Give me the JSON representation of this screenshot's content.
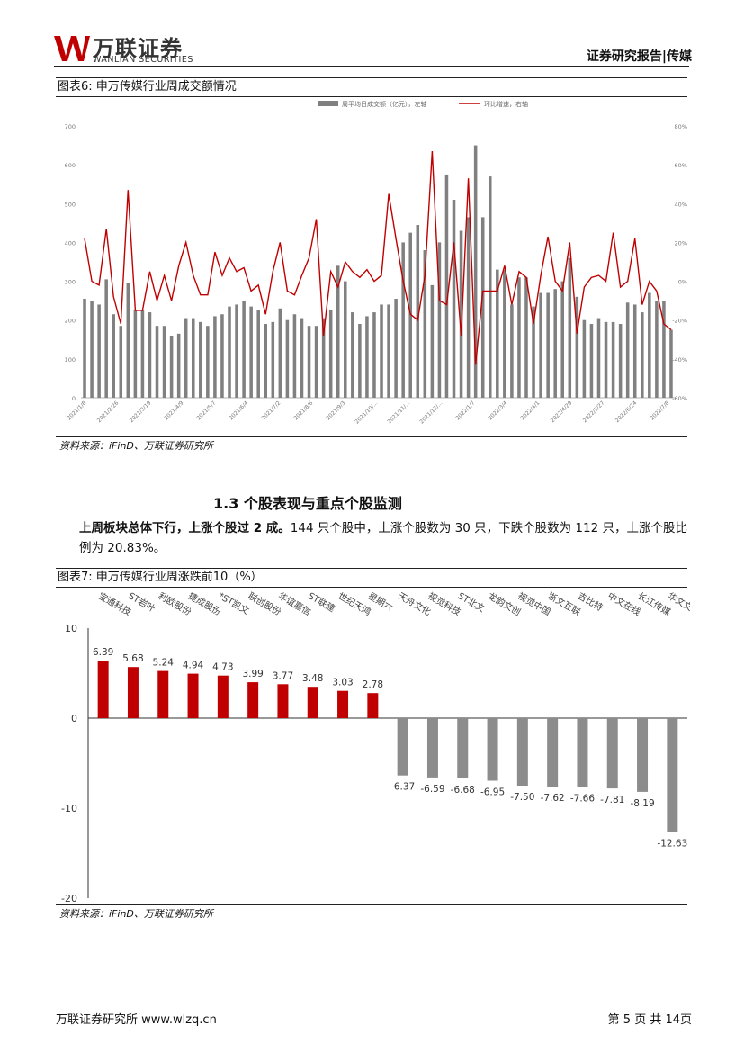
{
  "header": {
    "brand_cn": "万联证券",
    "brand_en": "WANLIAN SECURITIES",
    "report_type": "证券研究报告|传媒"
  },
  "figure6": {
    "caption": "图表6:  申万传媒行业周成交额情况",
    "source": "资料来源：iFinD、万联证券研究所",
    "chart_data": {
      "type": "bar+line",
      "legend": [
        "周平均日成交额（亿元），左轴",
        "环比增速，右轴"
      ],
      "left_axis": {
        "range": [
          0,
          700
        ],
        "ticks": [
          "0",
          "100",
          "200",
          "300",
          "400",
          "500",
          "600",
          "700"
        ]
      },
      "right_axis": {
        "range": [
          -60,
          80
        ],
        "ticks": [
          "-60%",
          "-40%",
          "-20%",
          "0%",
          "20%",
          "40%",
          "60%",
          "80%"
        ]
      },
      "x_tick_labels": [
        "2021/1/8",
        "2021/2/26",
        "2021/3/19",
        "2021/4/9",
        "2021/5/7",
        "2021/6/4",
        "2021/7/2",
        "2021/8/6",
        "2021/9/3",
        "2021/10/...",
        "2021/11/...",
        "2021/12/...",
        "2022/1/7",
        "2022/3/4",
        "2022/4/1",
        "2022/4/29",
        "2022/5/27",
        "2022/6/24",
        "2022/7/8"
      ],
      "bar_values": [
        255,
        250,
        240,
        305,
        215,
        185,
        295,
        225,
        225,
        220,
        185,
        185,
        160,
        165,
        205,
        205,
        195,
        185,
        210,
        215,
        235,
        240,
        250,
        235,
        225,
        190,
        195,
        230,
        200,
        215,
        205,
        185,
        185,
        205,
        225,
        340,
        300,
        220,
        190,
        210,
        220,
        240,
        240,
        255,
        400,
        425,
        445,
        380,
        290,
        400,
        575,
        510,
        430,
        465,
        650,
        465,
        570,
        330,
        330,
        240,
        310,
        310,
        235,
        270,
        270,
        280,
        300,
        360,
        260,
        200,
        190,
        205,
        195,
        195,
        190,
        245,
        240,
        220,
        270,
        250,
        250,
        175
      ],
      "growth_values": [
        22,
        0,
        -2,
        27,
        -8,
        -22,
        47,
        -15,
        -15,
        5,
        -10,
        3,
        -10,
        8,
        20,
        3,
        -7,
        -7,
        15,
        3,
        12,
        5,
        7,
        -5,
        -2,
        -17,
        5,
        20,
        -5,
        -7,
        3,
        12,
        32,
        -28,
        5,
        -3,
        10,
        5,
        2,
        6,
        0,
        3,
        45,
        22,
        0,
        -17,
        -20,
        3,
        67,
        -10,
        -12,
        20,
        -28,
        53,
        -43,
        -5,
        -5,
        -5,
        8,
        -12,
        5,
        2,
        -22,
        3,
        23,
        0,
        -5,
        20,
        -27,
        -3,
        2,
        3,
        0,
        25,
        -3,
        0,
        22,
        -12,
        0,
        -5,
        -22,
        -25
      ]
    }
  },
  "section": {
    "heading": "1.3 个股表现与重点个股监测",
    "para_bold": "上周板块总体下行，上涨个股过 2 成。",
    "para_rest": "144 只个股中，上涨个股数为 30 只，下跌个股数为 112 只，上涨个股比例为 20.83%。"
  },
  "figure7": {
    "caption": "图表7:  申万传媒行业周涨跌前10（%）",
    "source": "资料来源：iFinD、万联证券研究所",
    "chart_data": {
      "type": "bar",
      "categories": [
        "宝通科技",
        "ST岩叶",
        "利欧股份",
        "捷成股份",
        "*ST凯文",
        "联创股份",
        "华谊嘉信",
        "ST联建",
        "世纪天鸿",
        "星期六",
        "天舟文化",
        "视觉科技",
        "ST北文",
        "龙韵文创",
        "视觉中国",
        "浙文互联",
        "吉比特",
        "中文在线",
        "长江传媒",
        "华文文化"
      ],
      "values": [
        6.39,
        5.68,
        5.24,
        4.94,
        4.73,
        3.99,
        3.77,
        3.48,
        3.03,
        2.78,
        -6.37,
        -6.59,
        -6.68,
        -6.95,
        -7.5,
        -7.62,
        -7.66,
        -7.81,
        -8.19,
        -12.63
      ],
      "value_labels": [
        "6.39",
        "5.68",
        "5.24",
        "4.94",
        "4.73",
        "3.99",
        "3.77",
        "3.48",
        "3.03",
        "2.78",
        "-6.37",
        "-6.59",
        "-6.68",
        "-6.95",
        "-7.50",
        "-7.62",
        "-7.66",
        "-7.81",
        "-8.19",
        "-12.63"
      ],
      "y_ticks": [
        "10",
        "0",
        "-10",
        "-20"
      ],
      "ylim": [
        -20,
        10
      ],
      "colors": {
        "positive": "#c00000",
        "negative": "#8c8c8c"
      }
    }
  },
  "footer": {
    "left": "万联证券研究所 www.wlzq.cn",
    "right": "第 5 页 共 14页"
  }
}
